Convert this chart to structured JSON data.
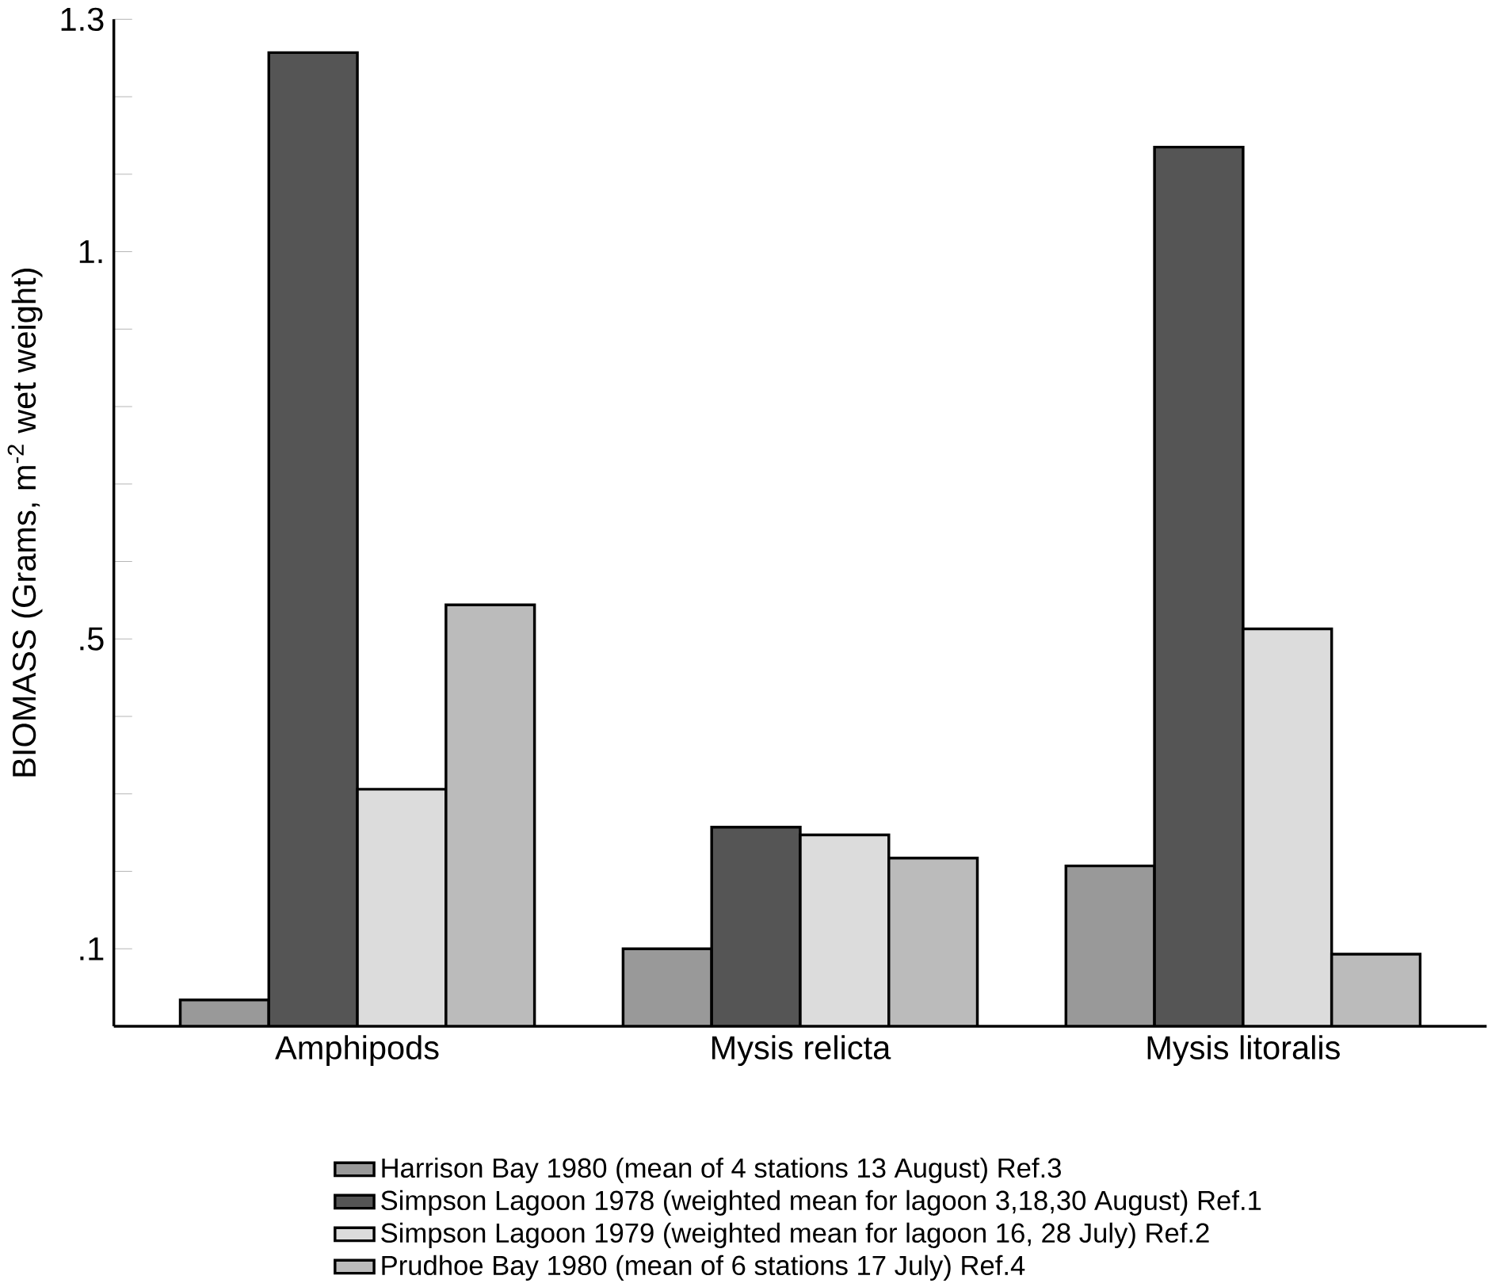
{
  "chart_data": {
    "type": "bar",
    "ylabel": "BIOMASS  (Grams, m$^{-2}$ wet weight)",
    "categories": [
      "Amphipods",
      "Mysis relicta",
      "Mysis litoralis"
    ],
    "series": [
      {
        "name": "Harrison Bay 1980 (mean of 4 stations 13 August) Ref.3",
        "color": "#999999",
        "values": [
          0.034,
          0.1,
          0.207
        ]
      },
      {
        "name": "Simpson Lagoon 1978 (weighted mean for lagoon 3,18,30 August) Ref.1",
        "color": "#555555",
        "values": [
          1.257,
          0.257,
          1.135
        ]
      },
      {
        "name": "Simpson Lagoon 1979 (weighted mean for lagoon 16, 28 July) Ref.2",
        "color": "#dcdcdc",
        "values": [
          0.306,
          0.247,
          0.513
        ]
      },
      {
        "name": "Prudhoe Bay 1980 (mean of 6 stations 17 July) Ref.4",
        "color": "#bbbbbb",
        "values": [
          0.544,
          0.217,
          0.093
        ]
      }
    ],
    "ylim": [
      0,
      1.3
    ],
    "yticks": [
      {
        "value": 0.1,
        "label": ".1"
      },
      {
        "value": 0.2,
        "label": null
      },
      {
        "value": 0.3,
        "label": null
      },
      {
        "value": 0.4,
        "label": null
      },
      {
        "value": 0.5,
        "label": ".5"
      },
      {
        "value": 0.6,
        "label": null
      },
      {
        "value": 0.7,
        "label": null
      },
      {
        "value": 0.8,
        "label": null
      },
      {
        "value": 0.9,
        "label": null
      },
      {
        "value": 1.0,
        "label": "1."
      },
      {
        "value": 1.1,
        "label": null
      },
      {
        "value": 1.2,
        "label": null
      },
      {
        "value": 1.3,
        "label": "1.3"
      }
    ],
    "legend": "bottom"
  }
}
